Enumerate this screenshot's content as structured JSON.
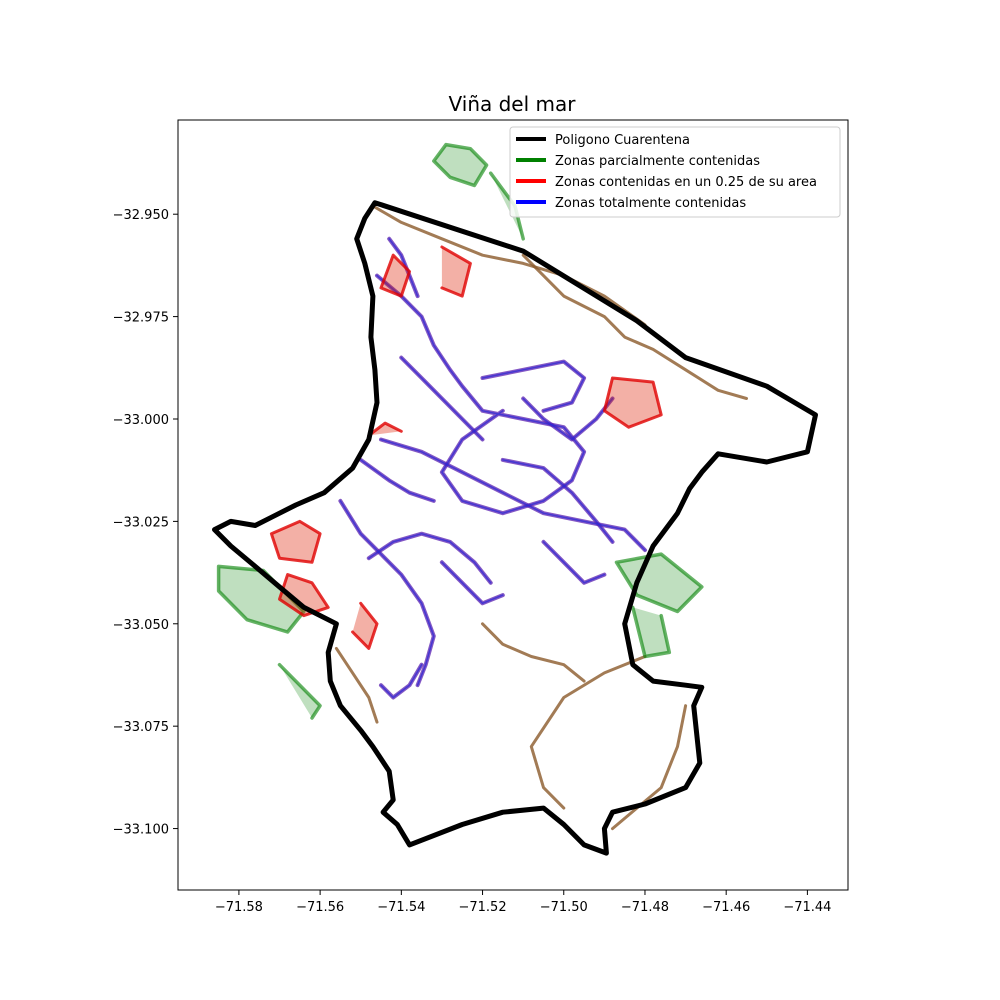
{
  "chart_data": {
    "type": "map",
    "title": "Viña del mar",
    "xlim": [
      -71.595,
      -71.43
    ],
    "ylim": [
      -33.115,
      -32.927
    ],
    "x_ticks": [
      {
        "value": -71.58,
        "label": "−71.58"
      },
      {
        "value": -71.56,
        "label": "−71.56"
      },
      {
        "value": -71.54,
        "label": "−71.54"
      },
      {
        "value": -71.52,
        "label": "−71.52"
      },
      {
        "value": -71.5,
        "label": "−71.50"
      },
      {
        "value": -71.48,
        "label": "−71.48"
      },
      {
        "value": -71.46,
        "label": "−71.46"
      },
      {
        "value": -71.44,
        "label": "−71.44"
      }
    ],
    "y_ticks": [
      {
        "value": -32.95,
        "label": "−32.950"
      },
      {
        "value": -32.975,
        "label": "−32.975"
      },
      {
        "value": -33.0,
        "label": "−33.000"
      },
      {
        "value": -33.025,
        "label": "−33.025"
      },
      {
        "value": -33.05,
        "label": "−33.050"
      },
      {
        "value": -33.075,
        "label": "−33.075"
      },
      {
        "value": -33.1,
        "label": "−33.100"
      }
    ],
    "legend": {
      "location": "upper right",
      "entries": [
        {
          "label": "Poligono Cuarentena",
          "color": "#000000"
        },
        {
          "label": "Zonas parcialmente contenidas",
          "color": "#008000"
        },
        {
          "label": "Zonas contenidas en un 0.25 de su area",
          "color": "#ff0000"
        },
        {
          "label": "Zonas totalmente contenidas",
          "color": "#0000ff"
        }
      ]
    },
    "quarantine_polygon": [
      [
        -71.5465,
        -32.9472
      ],
      [
        -71.51,
        -32.959
      ],
      [
        -71.482,
        -32.976
      ],
      [
        -71.47,
        -32.985
      ],
      [
        -71.45,
        -32.992
      ],
      [
        -71.438,
        -32.999
      ],
      [
        -71.44,
        -33.008
      ],
      [
        -71.45,
        -33.0105
      ],
      [
        -71.462,
        -33.0085
      ],
      [
        -71.466,
        -33.013
      ],
      [
        -71.469,
        -33.017
      ],
      [
        -71.472,
        -33.023
      ],
      [
        -71.478,
        -33.031
      ],
      [
        -71.482,
        -33.04
      ],
      [
        -71.485,
        -33.05
      ],
      [
        -71.483,
        -33.06
      ],
      [
        -71.478,
        -33.064
      ],
      [
        -71.47,
        -33.065
      ],
      [
        -71.466,
        -33.0655
      ],
      [
        -71.468,
        -33.07
      ],
      [
        -71.4665,
        -33.084
      ],
      [
        -71.47,
        -33.09
      ],
      [
        -71.48,
        -33.094
      ],
      [
        -71.488,
        -33.096
      ],
      [
        -71.49,
        -33.1
      ],
      [
        -71.4895,
        -33.106
      ],
      [
        -71.495,
        -33.104
      ],
      [
        -71.5,
        -33.099
      ],
      [
        -71.505,
        -33.095
      ],
      [
        -71.515,
        -33.096
      ],
      [
        -71.525,
        -33.099
      ],
      [
        -71.538,
        -33.104
      ],
      [
        -71.541,
        -33.099
      ],
      [
        -71.5445,
        -33.096
      ],
      [
        -71.542,
        -33.093
      ],
      [
        -71.543,
        -33.086
      ],
      [
        -71.547,
        -33.08
      ],
      [
        -71.55,
        -33.076
      ],
      [
        -71.555,
        -33.07
      ],
      [
        -71.5575,
        -33.064
      ],
      [
        -71.558,
        -33.057
      ],
      [
        -71.556,
        -33.05
      ],
      [
        -71.564,
        -33.046
      ],
      [
        -71.57,
        -33.041
      ],
      [
        -71.576,
        -33.036
      ],
      [
        -71.582,
        -33.031
      ],
      [
        -71.586,
        -33.027
      ],
      [
        -71.582,
        -33.025
      ],
      [
        -71.576,
        -33.026
      ],
      [
        -71.572,
        -33.024
      ],
      [
        -71.566,
        -33.021
      ],
      [
        -71.559,
        -33.018
      ],
      [
        -71.552,
        -33.012
      ],
      [
        -71.548,
        -33.005
      ],
      [
        -71.546,
        -32.996
      ],
      [
        -71.5465,
        -32.988
      ],
      [
        -71.5475,
        -32.98
      ],
      [
        -71.547,
        -32.97
      ],
      [
        -71.549,
        -32.962
      ],
      [
        -71.551,
        -32.956
      ],
      [
        -71.549,
        -32.951
      ],
      [
        -71.5465,
        -32.9472
      ]
    ],
    "zones_partially_contained": [
      [
        [
          -71.529,
          -32.933
        ],
        [
          -71.523,
          -32.934
        ],
        [
          -71.519,
          -32.938
        ],
        [
          -71.522,
          -32.943
        ],
        [
          -71.528,
          -32.941
        ],
        [
          -71.532,
          -32.937
        ],
        [
          -71.529,
          -32.933
        ]
      ],
      [
        [
          -71.518,
          -32.94
        ],
        [
          -71.512,
          -32.948
        ],
        [
          -71.51,
          -32.956
        ]
      ],
      [
        [
          -71.585,
          -33.036
        ],
        [
          -71.574,
          -33.037
        ],
        [
          -71.564,
          -33.047
        ],
        [
          -71.568,
          -33.052
        ],
        [
          -71.578,
          -33.049
        ],
        [
          -71.585,
          -33.042
        ],
        [
          -71.585,
          -33.036
        ]
      ],
      [
        [
          -71.57,
          -33.06
        ],
        [
          -71.565,
          -33.065
        ],
        [
          -71.56,
          -33.07
        ],
        [
          -71.562,
          -33.073
        ]
      ],
      [
        [
          -71.487,
          -33.035
        ],
        [
          -71.476,
          -33.033
        ],
        [
          -71.466,
          -33.041
        ],
        [
          -71.472,
          -33.047
        ],
        [
          -71.482,
          -33.043
        ],
        [
          -71.487,
          -33.035
        ]
      ],
      [
        [
          -71.483,
          -33.046
        ],
        [
          -71.48,
          -33.058
        ],
        [
          -71.474,
          -33.057
        ],
        [
          -71.476,
          -33.048
        ]
      ]
    ],
    "zones_quarter_contained": [
      [
        [
          -71.565,
          -33.025
        ],
        [
          -71.56,
          -33.028
        ],
        [
          -71.562,
          -33.035
        ],
        [
          -71.57,
          -33.034
        ],
        [
          -71.572,
          -33.028
        ],
        [
          -71.565,
          -33.025
        ]
      ],
      [
        [
          -71.568,
          -33.038
        ],
        [
          -71.562,
          -33.04
        ],
        [
          -71.558,
          -33.046
        ],
        [
          -71.564,
          -33.048
        ],
        [
          -71.57,
          -33.044
        ],
        [
          -71.568,
          -33.038
        ]
      ],
      [
        [
          -71.488,
          -32.99
        ],
        [
          -71.478,
          -32.991
        ],
        [
          -71.476,
          -32.999
        ],
        [
          -71.484,
          -33.002
        ],
        [
          -71.49,
          -32.998
        ],
        [
          -71.488,
          -32.99
        ]
      ],
      [
        [
          -71.542,
          -32.96
        ],
        [
          -71.538,
          -32.964
        ],
        [
          -71.54,
          -32.97
        ],
        [
          -71.545,
          -32.968
        ],
        [
          -71.542,
          -32.96
        ]
      ],
      [
        [
          -71.53,
          -32.958
        ],
        [
          -71.523,
          -32.962
        ],
        [
          -71.525,
          -32.97
        ],
        [
          -71.53,
          -32.968
        ]
      ],
      [
        [
          -71.55,
          -33.045
        ],
        [
          -71.546,
          -33.05
        ],
        [
          -71.548,
          -33.056
        ],
        [
          -71.552,
          -33.052
        ]
      ],
      [
        [
          -71.548,
          -33.004
        ],
        [
          -71.544,
          -33.001
        ],
        [
          -71.54,
          -33.003
        ]
      ]
    ],
    "zones_fully_contained": [
      [
        [
          -71.546,
          -32.965
        ],
        [
          -71.54,
          -32.97
        ],
        [
          -71.535,
          -32.975
        ],
        [
          -71.532,
          -32.982
        ],
        [
          -71.528,
          -32.988
        ],
        [
          -71.525,
          -32.992
        ],
        [
          -71.52,
          -32.998
        ],
        [
          -71.51,
          -33.0
        ],
        [
          -71.5,
          -33.002
        ],
        [
          -71.495,
          -33.008
        ],
        [
          -71.498,
          -33.015
        ],
        [
          -71.505,
          -33.02
        ],
        [
          -71.515,
          -33.023
        ],
        [
          -71.525,
          -33.02
        ],
        [
          -71.53,
          -33.013
        ],
        [
          -71.525,
          -33.005
        ],
        [
          -71.515,
          -32.998
        ]
      ],
      [
        [
          -71.545,
          -33.005
        ],
        [
          -71.535,
          -33.008
        ],
        [
          -71.525,
          -33.013
        ],
        [
          -71.515,
          -33.018
        ],
        [
          -71.505,
          -33.023
        ],
        [
          -71.495,
          -33.025
        ],
        [
          -71.485,
          -33.027
        ],
        [
          -71.48,
          -33.032
        ]
      ],
      [
        [
          -71.52,
          -32.99
        ],
        [
          -71.51,
          -32.988
        ],
        [
          -71.5,
          -32.986
        ],
        [
          -71.495,
          -32.99
        ],
        [
          -71.498,
          -32.996
        ],
        [
          -71.505,
          -32.998
        ]
      ],
      [
        [
          -71.555,
          -33.02
        ],
        [
          -71.55,
          -33.028
        ],
        [
          -71.545,
          -33.033
        ],
        [
          -71.54,
          -33.038
        ],
        [
          -71.535,
          -33.045
        ],
        [
          -71.532,
          -33.053
        ],
        [
          -71.534,
          -33.06
        ],
        [
          -71.536,
          -33.065
        ]
      ],
      [
        [
          -71.548,
          -33.034
        ],
        [
          -71.542,
          -33.03
        ],
        [
          -71.535,
          -33.028
        ],
        [
          -71.528,
          -33.03
        ],
        [
          -71.522,
          -33.035
        ],
        [
          -71.518,
          -33.04
        ]
      ],
      [
        [
          -71.515,
          -33.01
        ],
        [
          -71.505,
          -33.012
        ],
        [
          -71.498,
          -33.018
        ],
        [
          -71.492,
          -33.025
        ],
        [
          -71.488,
          -33.03
        ]
      ],
      [
        [
          -71.54,
          -32.985
        ],
        [
          -71.535,
          -32.99
        ],
        [
          -71.53,
          -32.995
        ],
        [
          -71.525,
          -33.0
        ],
        [
          -71.52,
          -33.005
        ]
      ],
      [
        [
          -71.53,
          -33.035
        ],
        [
          -71.525,
          -33.04
        ],
        [
          -71.52,
          -33.045
        ],
        [
          -71.515,
          -33.043
        ]
      ],
      [
        [
          -71.55,
          -33.01
        ],
        [
          -71.543,
          -33.015
        ],
        [
          -71.538,
          -33.018
        ],
        [
          -71.532,
          -33.02
        ]
      ],
      [
        [
          -71.505,
          -33.03
        ],
        [
          -71.5,
          -33.035
        ],
        [
          -71.495,
          -33.04
        ],
        [
          -71.49,
          -33.038
        ]
      ],
      [
        [
          -71.535,
          -33.06
        ],
        [
          -71.538,
          -33.065
        ],
        [
          -71.542,
          -33.068
        ],
        [
          -71.545,
          -33.065
        ]
      ],
      [
        [
          -71.51,
          -32.995
        ],
        [
          -71.505,
          -33.0
        ],
        [
          -71.498,
          -33.005
        ],
        [
          -71.492,
          -33.0
        ],
        [
          -71.488,
          -32.995
        ]
      ],
      [
        [
          -71.543,
          -32.956
        ],
        [
          -71.54,
          -32.96
        ],
        [
          -71.538,
          -32.965
        ],
        [
          -71.536,
          -32.97
        ]
      ]
    ],
    "zones_boundary_outlines": [
      [
        [
          -71.547,
          -32.948
        ],
        [
          -71.54,
          -32.952
        ],
        [
          -71.53,
          -32.956
        ],
        [
          -71.52,
          -32.96
        ],
        [
          -71.51,
          -32.962
        ],
        [
          -71.5,
          -32.965
        ],
        [
          -71.49,
          -32.97
        ],
        [
          -71.48,
          -32.977
        ]
      ],
      [
        [
          -71.51,
          -32.96
        ],
        [
          -71.5,
          -32.97
        ],
        [
          -71.49,
          -32.975
        ],
        [
          -71.485,
          -32.98
        ],
        [
          -71.478,
          -32.983
        ],
        [
          -71.47,
          -32.988
        ],
        [
          -71.462,
          -32.993
        ],
        [
          -71.455,
          -32.995
        ]
      ],
      [
        [
          -71.48,
          -33.058
        ],
        [
          -71.49,
          -33.062
        ],
        [
          -71.5,
          -33.068
        ],
        [
          -71.508,
          -33.08
        ],
        [
          -71.505,
          -33.09
        ],
        [
          -71.5,
          -33.095
        ]
      ],
      [
        [
          -71.47,
          -33.07
        ],
        [
          -71.472,
          -33.08
        ],
        [
          -71.476,
          -33.09
        ],
        [
          -71.482,
          -33.095
        ],
        [
          -71.488,
          -33.1
        ]
      ],
      [
        [
          -71.556,
          -33.056
        ],
        [
          -71.552,
          -33.062
        ],
        [
          -71.548,
          -33.068
        ],
        [
          -71.546,
          -33.074
        ]
      ],
      [
        [
          -71.52,
          -33.05
        ],
        [
          -71.515,
          -33.055
        ],
        [
          -71.508,
          -33.058
        ],
        [
          -71.5,
          -33.06
        ],
        [
          -71.495,
          -33.064
        ]
      ]
    ]
  }
}
